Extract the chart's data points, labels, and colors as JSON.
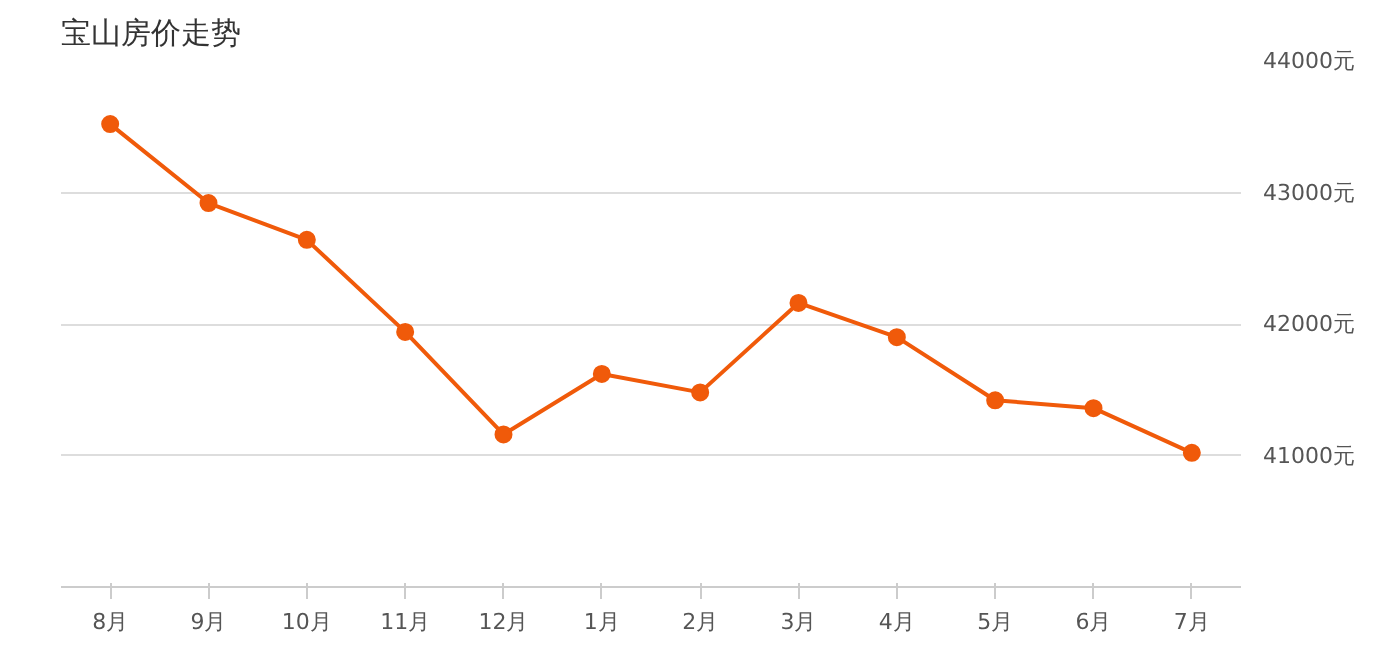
{
  "chart_data": {
    "type": "line",
    "title": "宝山房价走势",
    "categories": [
      "8月",
      "9月",
      "10月",
      "11月",
      "12月",
      "1月",
      "2月",
      "3月",
      "4月",
      "5月",
      "6月",
      "7月"
    ],
    "series": [
      {
        "color": "#f05a0a",
        "values": [
          43520,
          42920,
          42640,
          41940,
          41160,
          41620,
          41480,
          42160,
          41900,
          41420,
          41360,
          41020
        ]
      }
    ],
    "ylim": [
      40000,
      44000
    ],
    "yticks": [
      {
        "value": 41000,
        "label": "41000元"
      },
      {
        "value": 42000,
        "label": "42000元"
      },
      {
        "value": 43000,
        "label": "43000元"
      },
      {
        "value": 44000,
        "label": "44000元"
      }
    ],
    "grid": "y",
    "marker": "circle"
  }
}
